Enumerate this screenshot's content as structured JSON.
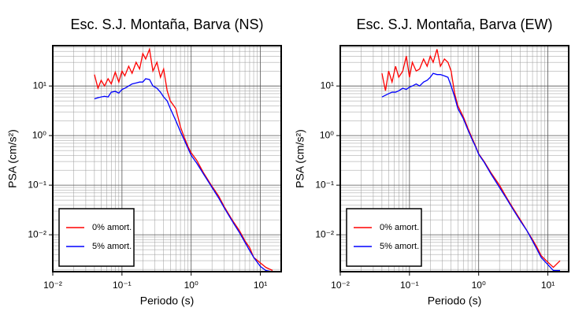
{
  "chart_data": [
    {
      "type": "line",
      "title": "Esc. S.J. Montaña, Barva (NS)",
      "xlabel": "Periodo (s)",
      "ylabel": "PSA (cm/s²)",
      "xscale": "log",
      "yscale": "log",
      "grid": true,
      "legend": "lower left",
      "xlim": [
        0.01,
        20
      ],
      "ylim": [
        0.0018,
        65
      ],
      "xticks": [
        {
          "value": 0.01,
          "label": "10⁻²"
        },
        {
          "value": 0.1,
          "label": "10⁻¹"
        },
        {
          "value": 1,
          "label": "10⁰"
        },
        {
          "value": 10,
          "label": "10¹"
        }
      ],
      "yticks": [
        {
          "value": 0.01,
          "label": "10⁻²"
        },
        {
          "value": 0.1,
          "label": "10⁻¹"
        },
        {
          "value": 1,
          "label": "10⁰"
        },
        {
          "value": 10,
          "label": "10¹"
        }
      ],
      "x": [
        0.04,
        0.045,
        0.05,
        0.056,
        0.063,
        0.07,
        0.08,
        0.09,
        0.1,
        0.11,
        0.125,
        0.14,
        0.16,
        0.18,
        0.2,
        0.22,
        0.25,
        0.28,
        0.32,
        0.36,
        0.4,
        0.45,
        0.5,
        0.6,
        0.7,
        0.8,
        0.9,
        1,
        1.2,
        1.5,
        2,
        2.5,
        3,
        4,
        5,
        6,
        7,
        8,
        10,
        12,
        15
      ],
      "series": [
        {
          "name": "0% amort.",
          "color": "#ff0000",
          "values": [
            17,
            9,
            13,
            10,
            14,
            11,
            19,
            12,
            20,
            16,
            25,
            18,
            30,
            22,
            45,
            35,
            55,
            20,
            30,
            15,
            22,
            8,
            5,
            3.5,
            1.5,
            0.9,
            0.6,
            0.45,
            0.32,
            0.18,
            0.095,
            0.06,
            0.037,
            0.019,
            0.012,
            0.0075,
            0.0055,
            0.0035,
            0.0027,
            0.0022,
            0.0019
          ]
        },
        {
          "name": "5% amort.",
          "color": "#0000ff",
          "values": [
            5.5,
            5.8,
            6,
            6.2,
            6,
            7.5,
            7.8,
            7.2,
            8.5,
            9,
            10,
            11,
            11.5,
            12,
            12,
            14,
            13.5,
            10,
            9,
            7.5,
            6,
            5,
            3.5,
            2,
            1.2,
            0.8,
            0.55,
            0.4,
            0.28,
            0.17,
            0.09,
            0.055,
            0.035,
            0.018,
            0.011,
            0.007,
            0.0048,
            0.0035,
            0.0023,
            0.0019,
            0.0018
          ]
        }
      ]
    },
    {
      "type": "line",
      "title": "Esc. S.J. Montaña, Barva (EW)",
      "xlabel": "Periodo (s)",
      "ylabel": "PSA (cm/s²)",
      "xscale": "log",
      "yscale": "log",
      "grid": true,
      "legend": "lower left",
      "xlim": [
        0.01,
        20
      ],
      "ylim": [
        0.0018,
        65
      ],
      "xticks": [
        {
          "value": 0.01,
          "label": "10⁻²"
        },
        {
          "value": 0.1,
          "label": "10⁻¹"
        },
        {
          "value": 1,
          "label": "10⁰"
        },
        {
          "value": 10,
          "label": "10¹"
        }
      ],
      "yticks": [
        {
          "value": 0.01,
          "label": "10⁻²"
        },
        {
          "value": 0.1,
          "label": "10⁻¹"
        },
        {
          "value": 1,
          "label": "10⁰"
        },
        {
          "value": 10,
          "label": "10¹"
        }
      ],
      "x": [
        0.04,
        0.045,
        0.05,
        0.056,
        0.063,
        0.07,
        0.08,
        0.09,
        0.1,
        0.11,
        0.125,
        0.14,
        0.16,
        0.18,
        0.2,
        0.22,
        0.25,
        0.28,
        0.32,
        0.36,
        0.4,
        0.45,
        0.5,
        0.6,
        0.7,
        0.8,
        0.9,
        1,
        1.2,
        1.5,
        2,
        2.5,
        3,
        4,
        5,
        6,
        7,
        8,
        10,
        12,
        15
      ],
      "series": [
        {
          "name": "0% amort.",
          "color": "#ff0000",
          "values": [
            18,
            8,
            20,
            12,
            25,
            15,
            20,
            40,
            15,
            30,
            20,
            22,
            35,
            25,
            40,
            30,
            55,
            25,
            35,
            30,
            20,
            7,
            4,
            2.4,
            1.4,
            0.9,
            0.62,
            0.43,
            0.3,
            0.18,
            0.1,
            0.058,
            0.038,
            0.02,
            0.012,
            0.008,
            0.0055,
            0.0038,
            0.0028,
            0.0022,
            0.003
          ]
        },
        {
          "name": "5% amort.",
          "color": "#0000ff",
          "values": [
            6,
            6.5,
            7,
            7.5,
            7.5,
            8,
            9,
            8.5,
            9.5,
            10,
            11,
            10,
            12,
            13,
            15,
            18,
            17,
            17,
            16,
            15,
            10,
            6,
            3.5,
            2.2,
            1.3,
            0.85,
            0.6,
            0.42,
            0.29,
            0.17,
            0.09,
            0.055,
            0.036,
            0.019,
            0.012,
            0.0075,
            0.005,
            0.0035,
            0.0025,
            0.0019,
            0.0019
          ]
        }
      ]
    }
  ]
}
